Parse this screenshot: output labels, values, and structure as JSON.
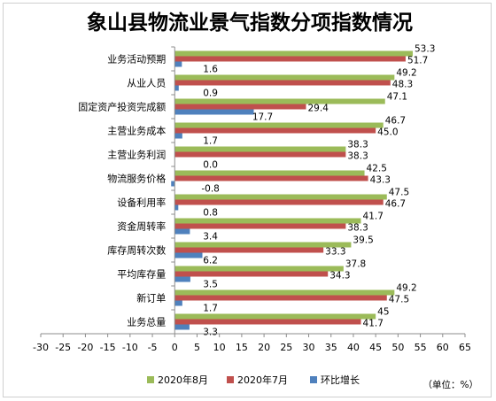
{
  "chart_data": {
    "type": "bar",
    "orientation": "horizontal",
    "title": "象山县物流业景气指数分项指数情况",
    "unit_note": "（单位：%）",
    "categories": [
      "业务活动预期",
      "从业人员",
      "固定资产投资完成额",
      "主营业务成本",
      "主营业务利润",
      "物流服务价格",
      "设备利用率",
      "资金周转率",
      "库存周转次数",
      "平均库存量",
      "新订单",
      "业务总量"
    ],
    "series": [
      {
        "name": "2020年8月",
        "color": "#9bbb59",
        "values": [
          53.3,
          49.2,
          47.1,
          46.7,
          38.3,
          42.5,
          47.5,
          41.7,
          39.5,
          37.8,
          49.2,
          45
        ],
        "labels": [
          "53.3",
          "49.2",
          "47.1",
          "46.7",
          "38.3",
          "42.5",
          "47.5",
          "41.7",
          "39.5",
          "37.8",
          "49.2",
          "45"
        ]
      },
      {
        "name": "2020年7月",
        "color": "#c0504d",
        "values": [
          51.7,
          48.3,
          29.4,
          45.0,
          38.3,
          43.3,
          46.7,
          38.3,
          33.3,
          34.3,
          47.5,
          41.7
        ],
        "labels": [
          "51.7",
          "48.3",
          "29.4",
          "45.0",
          "38.3",
          "43.3",
          "46.7",
          "38.3",
          "33.3",
          "34.3",
          "47.5",
          "41.7"
        ]
      },
      {
        "name": "环比增长",
        "color": "#4f81bd",
        "values": [
          1.6,
          0.9,
          17.7,
          1.7,
          0.0,
          -0.8,
          0.8,
          3.4,
          6.2,
          3.5,
          1.7,
          3.3
        ],
        "labels": [
          "1.6",
          "0.9",
          "17.7",
          "1.7",
          "0.0",
          "-0.8",
          "0.8",
          "3.4",
          "6.2",
          "3.5",
          "1.7",
          "3.3"
        ]
      }
    ],
    "xlim": [
      -30,
      65
    ],
    "xticks": [
      -30,
      -25,
      -20,
      -15,
      -10,
      -5,
      0,
      5,
      10,
      15,
      20,
      25,
      30,
      35,
      40,
      45,
      50,
      55,
      60,
      65
    ],
    "legend_position": "bottom",
    "grid": false
  }
}
